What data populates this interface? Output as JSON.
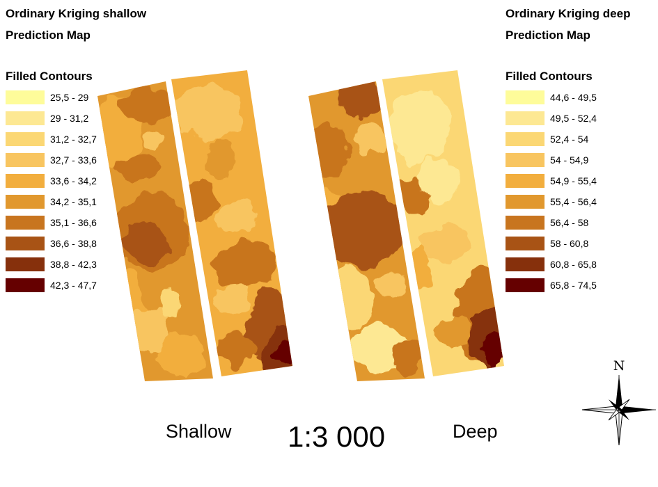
{
  "left_panel": {
    "title": "Ordinary Kriging shallow",
    "subtitle": "Prediction Map",
    "legend_title": "Filled Contours",
    "classes": [
      {
        "label": "25,5 - 29",
        "color": "#FEFC9A"
      },
      {
        "label": "29 - 31,2",
        "color": "#FDE893"
      },
      {
        "label": "31,2 - 32,7",
        "color": "#FBD774"
      },
      {
        "label": "32,7 - 33,6",
        "color": "#F8C560"
      },
      {
        "label": "33,6 - 34,2",
        "color": "#F2AE3E"
      },
      {
        "label": "34,2 - 35,1",
        "color": "#E1982E"
      },
      {
        "label": "35,1 - 36,6",
        "color": "#C8751F"
      },
      {
        "label": "36,6 - 38,8",
        "color": "#A85315"
      },
      {
        "label": "38,8 - 42,3",
        "color": "#86300C"
      },
      {
        "label": "42,3 - 47,7",
        "color": "#650000"
      }
    ],
    "caption": "Shallow"
  },
  "right_panel": {
    "title": "Ordinary Kriging deep",
    "subtitle": "Prediction Map",
    "legend_title": "Filled Contours",
    "classes": [
      {
        "label": "44,6 - 49,5",
        "color": "#FEFC9A"
      },
      {
        "label": "49,5 - 52,4",
        "color": "#FDE893"
      },
      {
        "label": "52,4 - 54",
        "color": "#FBD774"
      },
      {
        "label": "54 - 54,9",
        "color": "#F8C560"
      },
      {
        "label": "54,9 - 55,4",
        "color": "#F2AE3E"
      },
      {
        "label": "55,4 - 56,4",
        "color": "#E1982E"
      },
      {
        "label": "56,4 - 58",
        "color": "#C8751F"
      },
      {
        "label": "58 - 60,8",
        "color": "#A85315"
      },
      {
        "label": "60,8 - 65,8",
        "color": "#86300C"
      },
      {
        "label": "65,8 - 74,5",
        "color": "#650000"
      }
    ],
    "caption": "Deep"
  },
  "scale": "1:3 000",
  "north_label": "N"
}
